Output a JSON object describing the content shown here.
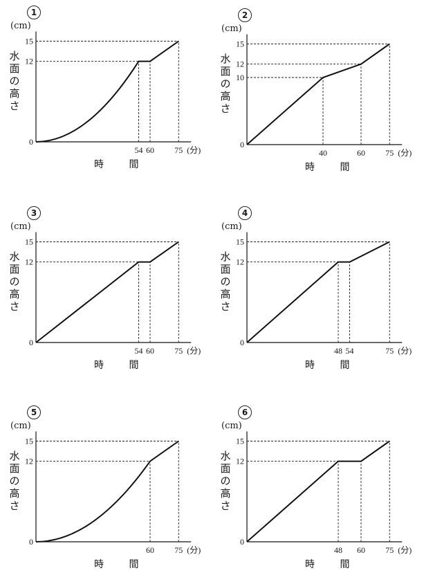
{
  "chart_data": [
    {
      "type": "line",
      "id": "①",
      "y_unit": "(cm)",
      "ylabel": "水面の高さ",
      "xlabel": "時 間",
      "x_unit": "(分)",
      "xlim": [
        0,
        75
      ],
      "ylim": [
        0,
        15
      ],
      "y_ticks": [
        "0",
        "12",
        "15"
      ],
      "x_ticks": [
        "54",
        "60",
        "75"
      ],
      "curve": "convex-then-linear",
      "points": [
        [
          0,
          0
        ],
        [
          54,
          12
        ],
        [
          60,
          12
        ],
        [
          75,
          15
        ]
      ]
    },
    {
      "type": "line",
      "id": "②",
      "y_unit": "(cm)",
      "ylabel": "水面の高さ",
      "xlabel": "時 間",
      "x_unit": "(分)",
      "xlim": [
        0,
        75
      ],
      "ylim": [
        0,
        15
      ],
      "y_ticks": [
        "0",
        "10",
        "12",
        "15"
      ],
      "x_ticks": [
        "40",
        "60",
        "75"
      ],
      "curve": "linear",
      "points": [
        [
          0,
          0
        ],
        [
          40,
          10
        ],
        [
          60,
          12
        ],
        [
          75,
          15
        ]
      ]
    },
    {
      "type": "line",
      "id": "③",
      "y_unit": "(cm)",
      "ylabel": "水面の高さ",
      "xlabel": "時 間",
      "x_unit": "(分)",
      "xlim": [
        0,
        75
      ],
      "ylim": [
        0,
        15
      ],
      "y_ticks": [
        "0",
        "12",
        "15"
      ],
      "x_ticks": [
        "54",
        "60",
        "75"
      ],
      "curve": "linear",
      "points": [
        [
          0,
          0
        ],
        [
          54,
          12
        ],
        [
          60,
          12
        ],
        [
          75,
          15
        ]
      ]
    },
    {
      "type": "line",
      "id": "④",
      "y_unit": "(cm)",
      "ylabel": "水面の高さ",
      "xlabel": "時 間",
      "x_unit": "(分)",
      "xlim": [
        0,
        75
      ],
      "ylim": [
        0,
        15
      ],
      "y_ticks": [
        "0",
        "12",
        "15"
      ],
      "x_ticks": [
        "48",
        "54",
        "75"
      ],
      "curve": "linear",
      "points": [
        [
          0,
          0
        ],
        [
          48,
          12
        ],
        [
          54,
          12
        ],
        [
          75,
          15
        ]
      ]
    },
    {
      "type": "line",
      "id": "⑤",
      "y_unit": "(cm)",
      "ylabel": "水面の高さ",
      "xlabel": "時 間",
      "x_unit": "(分)",
      "xlim": [
        0,
        75
      ],
      "ylim": [
        0,
        15
      ],
      "y_ticks": [
        "0",
        "12",
        "15"
      ],
      "x_ticks": [
        "60",
        "75"
      ],
      "curve": "convex-then-linear",
      "points": [
        [
          0,
          0
        ],
        [
          60,
          12
        ],
        [
          75,
          15
        ]
      ]
    },
    {
      "type": "line",
      "id": "⑥",
      "y_unit": "(cm)",
      "ylabel": "水面の高さ",
      "xlabel": "時 間",
      "x_unit": "(分)",
      "xlim": [
        0,
        75
      ],
      "ylim": [
        0,
        15
      ],
      "y_ticks": [
        "0",
        "12",
        "15"
      ],
      "x_ticks": [
        "48",
        "60",
        "75"
      ],
      "curve": "linear",
      "points": [
        [
          0,
          0
        ],
        [
          48,
          12
        ],
        [
          60,
          12
        ],
        [
          75,
          15
        ]
      ]
    }
  ]
}
